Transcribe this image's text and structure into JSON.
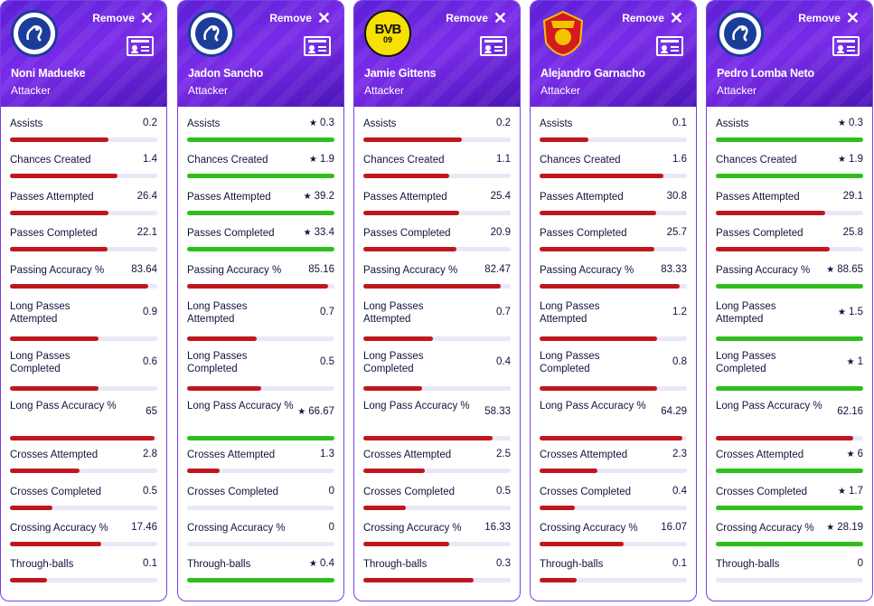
{
  "header": {
    "remove_label": "Remove",
    "position": "Attacker"
  },
  "colors": {
    "below": "#c0171e",
    "best": "#2fbf1b",
    "track": "#ebe7f5",
    "header": "#6a24e0"
  },
  "stat_labels": [
    "Assists",
    "Chances Created",
    "Passes Attempted",
    "Passes Completed",
    "Passing Accuracy %",
    "Long Passes Attempted",
    "Long Passes Completed",
    "Long Pass Accuracy %",
    "Crosses Attempted",
    "Crosses Completed",
    "Crossing Accuracy %",
    "Through-balls"
  ],
  "players": [
    {
      "name": "Noni Madueke",
      "position": "Attacker",
      "club": "chelsea",
      "values": [
        "0.2",
        "1.4",
        "26.4",
        "22.1",
        "83.64",
        "0.9",
        "0.6",
        "65",
        "2.8",
        "0.5",
        "17.46",
        "0.1"
      ],
      "best": [
        false,
        false,
        false,
        false,
        false,
        false,
        false,
        false,
        false,
        false,
        false,
        false
      ],
      "fill": [
        0.67,
        0.73,
        0.67,
        0.66,
        0.94,
        0.6,
        0.6,
        0.98,
        0.47,
        0.29,
        0.62,
        0.25
      ]
    },
    {
      "name": "Jadon Sancho",
      "position": "Attacker",
      "club": "chelsea",
      "values": [
        "0.3",
        "1.9",
        "39.2",
        "33.4",
        "85.16",
        "0.7",
        "0.5",
        "66.67",
        "1.3",
        "0",
        "0",
        "0.4"
      ],
      "best": [
        true,
        true,
        true,
        true,
        false,
        false,
        false,
        true,
        false,
        false,
        false,
        true
      ],
      "fill": [
        1.0,
        1.0,
        1.0,
        1.0,
        0.96,
        0.47,
        0.5,
        1.0,
        0.22,
        0.0,
        0.0,
        1.0
      ]
    },
    {
      "name": "Jamie Gittens",
      "position": "Attacker",
      "club": "bvb",
      "values": [
        "0.2",
        "1.1",
        "25.4",
        "20.9",
        "82.47",
        "0.7",
        "0.4",
        "58.33",
        "2.5",
        "0.5",
        "16.33",
        "0.3"
      ],
      "best": [
        false,
        false,
        false,
        false,
        false,
        false,
        false,
        false,
        false,
        false,
        false,
        false
      ],
      "fill": [
        0.67,
        0.58,
        0.65,
        0.63,
        0.93,
        0.47,
        0.4,
        0.88,
        0.42,
        0.29,
        0.58,
        0.75
      ]
    },
    {
      "name": "Alejandro Garnacho",
      "position": "Attacker",
      "club": "manu",
      "values": [
        "0.1",
        "1.6",
        "30.8",
        "25.7",
        "83.33",
        "1.2",
        "0.8",
        "64.29",
        "2.3",
        "0.4",
        "16.07",
        "0.1"
      ],
      "best": [
        false,
        false,
        false,
        false,
        false,
        false,
        false,
        false,
        false,
        false,
        false,
        false
      ],
      "fill": [
        0.33,
        0.84,
        0.79,
        0.78,
        0.95,
        0.8,
        0.8,
        0.97,
        0.39,
        0.24,
        0.57,
        0.25
      ]
    },
    {
      "name": "Pedro Lomba Neto",
      "position": "Attacker",
      "club": "chelsea",
      "values": [
        "0.3",
        "1.9",
        "29.1",
        "25.8",
        "88.65",
        "1.5",
        "1",
        "62.16",
        "6",
        "1.7",
        "28.19",
        "0"
      ],
      "best": [
        true,
        true,
        false,
        false,
        true,
        true,
        true,
        false,
        true,
        true,
        true,
        false
      ],
      "fill": [
        1.0,
        1.0,
        0.74,
        0.77,
        1.0,
        1.0,
        1.0,
        0.93,
        1.0,
        1.0,
        1.0,
        0.0
      ]
    }
  ]
}
